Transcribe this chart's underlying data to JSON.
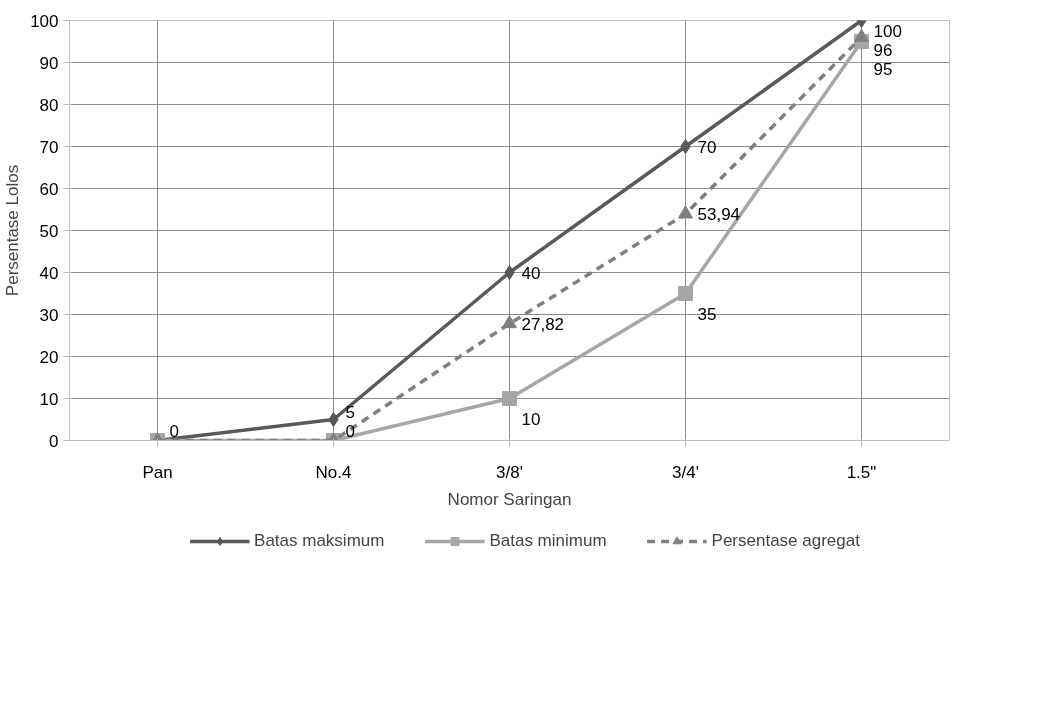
{
  "chart_data": {
    "type": "line",
    "xlabel": "Nomor Saringan",
    "ylabel": "Persentase Lolos",
    "categories": [
      "Pan",
      "No.4",
      "3/8'",
      "3/4'",
      "1.5\""
    ],
    "ylim": [
      0,
      100
    ],
    "yticks": [
      0,
      10,
      20,
      30,
      40,
      50,
      60,
      70,
      80,
      90,
      100
    ],
    "grid": true,
    "legend": "bottom",
    "series": [
      {
        "name": "Batas maksimum",
        "color": "#595959",
        "marker": "diamond",
        "line_style": "solid",
        "values": [
          0,
          5,
          40,
          70,
          100
        ],
        "value_labels": [
          null,
          "5",
          "40",
          "70",
          "100"
        ]
      },
      {
        "name": "Batas minimum",
        "color": "#a6a6a6",
        "marker": "square",
        "line_style": "solid",
        "values": [
          0,
          0,
          10,
          35,
          95
        ],
        "value_labels": [
          null,
          null,
          "10",
          "35",
          "95"
        ]
      },
      {
        "name": "Persentase agregat",
        "color": "#7f7f7f",
        "marker": "triangle",
        "line_style": "dashed",
        "values": [
          0,
          0,
          27.82,
          53.94,
          96
        ],
        "value_labels": [
          "0",
          "0",
          "27,82",
          "53,94",
          "96"
        ]
      }
    ]
  }
}
